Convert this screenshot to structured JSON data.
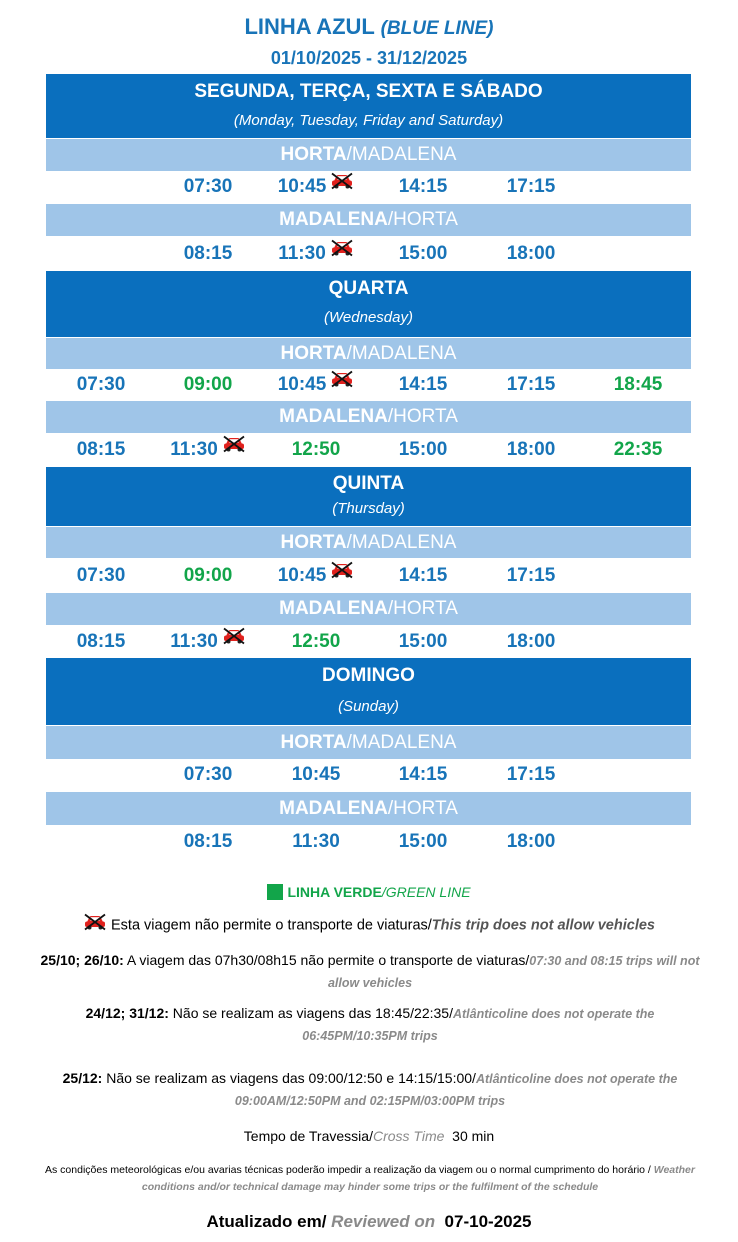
{
  "header": {
    "title_main": "LINHA AZUL",
    "title_sub": "(BLUE LINE)",
    "date_range": "01/10/2025 - 31/12/2025"
  },
  "sections": [
    {
      "day_pt": "SEGUNDA, TERÇA, SEXTA E SÁBADO",
      "day_en": "(Monday, Tuesday, Friday and Saturday)",
      "out_from": "HORTA",
      "out_to": "/MADALENA",
      "out_times": [
        "07:30",
        "10:45",
        "14:15",
        "17:15"
      ],
      "ret_from": "MADALENA",
      "ret_to": "/HORTA",
      "ret_times": [
        "08:15",
        "11:30",
        "15:00",
        "18:00"
      ]
    },
    {
      "day_pt": "QUARTA",
      "day_en": "(Wednesday)",
      "out_from": "HORTA",
      "out_to": "/MADALENA",
      "out_times": [
        "07:30",
        "09:00",
        "10:45",
        "14:15",
        "17:15",
        "18:45"
      ],
      "ret_from": "MADALENA",
      "ret_to": "/HORTA",
      "ret_times": [
        "08:15",
        "11:30",
        "12:50",
        "15:00",
        "18:00",
        "22:35"
      ]
    },
    {
      "day_pt": "QUINTA",
      "day_en": "(Thursday)",
      "out_from": "HORTA",
      "out_to": "/MADALENA",
      "out_times": [
        "07:30",
        "09:00",
        "10:45",
        "14:15",
        "17:15"
      ],
      "ret_from": "MADALENA",
      "ret_to": "/HORTA",
      "ret_times": [
        "08:15",
        "11:30",
        "12:50",
        "15:00",
        "18:00"
      ]
    },
    {
      "day_pt": "DOMINGO",
      "day_en": "(Sunday)",
      "out_from": "HORTA",
      "out_to": "/MADALENA",
      "out_times": [
        "07:30",
        "10:45",
        "14:15",
        "17:15"
      ],
      "ret_from": "MADALENA",
      "ret_to": "/HORTA",
      "ret_times": [
        "08:15",
        "11:30",
        "15:00",
        "18:00"
      ]
    }
  ],
  "colors": {
    "blue_line": "#1874b8",
    "green_line": "#12a54a",
    "band_dark": "#0a6fbe",
    "band_light": "#9fc5e8",
    "no_vehicle_icon": "#e0211d"
  },
  "legend": {
    "green_pt": "LINHA VERDE",
    "green_en": "/GREEN LINE",
    "no_vehicles_pt": "Esta viagem não permite o transporte de viaturas/",
    "no_vehicles_en": "This trip does not allow vehicles"
  },
  "notes": [
    {
      "dates": "25/10;  26/10:",
      "pt": " A viagem das 07h30/08h15 não permite o transporte de viaturas/",
      "en": "07:30 and 08:15 trips will not allow vehicles"
    },
    {
      "dates": "24/12; 31/12:",
      "pt": " Não se realizam as viagens das 18:45/22:35/",
      "en": "Atlânticoline does not operate the 06:45PM/10:35PM trips"
    },
    {
      "dates": "25/12:",
      "pt": " Não se realizam as viagens das 09:00/12:50 e 14:15/15:00/",
      "en": "Atlânticoline does not operate the 09:00AM/12:50PM and 02:15PM/03:00PM trips"
    }
  ],
  "crossing": {
    "pt": "Tempo de Travessia/",
    "en": "Cross Time",
    "value": "30 min"
  },
  "disclaimer": {
    "pt": "As condições meteorológicas e/ou avarias técnicas poderão impedir a realização da viagem ou o normal cumprimento do horário / ",
    "en": "Weather conditions and/or technical damage may hinder some trips or the fulfilment of the schedule"
  },
  "updated": {
    "pt": "Atualizado em/ ",
    "en": "Reviewed on",
    "date": "07-10-2025"
  }
}
